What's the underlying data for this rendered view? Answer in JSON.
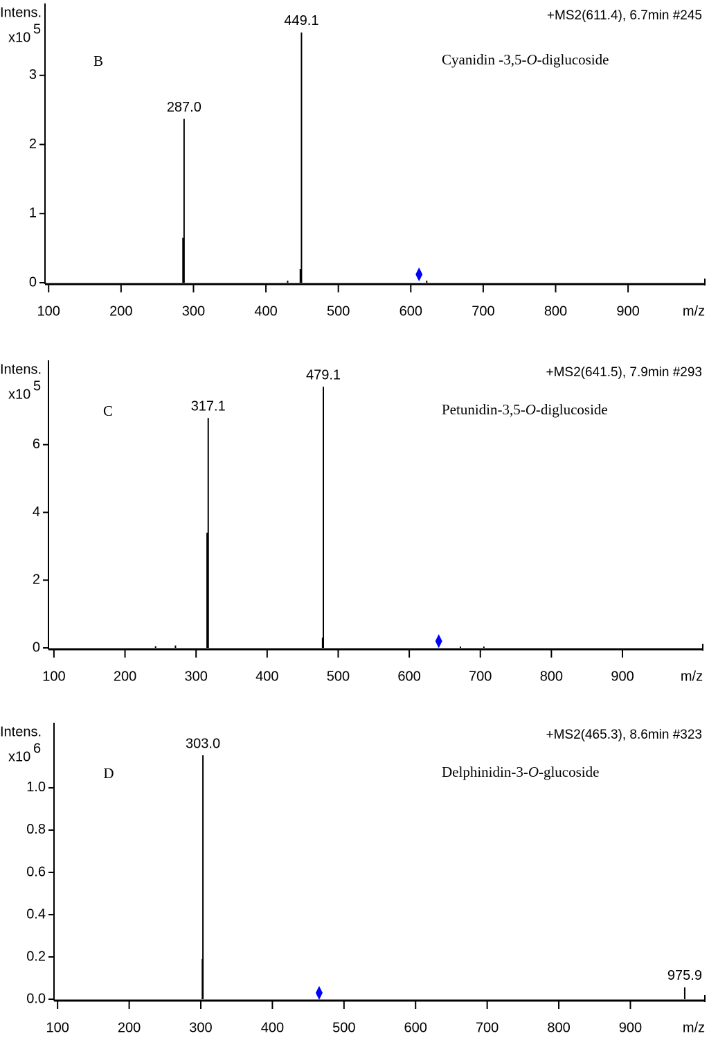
{
  "chart_data": [
    {
      "type": "bar",
      "ylabel": "Intens.",
      "yscale_label": "x10",
      "yscale_exponent": "5",
      "header": "+MS2(611.4), 6.7min #245",
      "panel": "B",
      "compound": [
        "Cyanidin -3,5-",
        "O",
        "-diglucoside"
      ],
      "xlabel": "m/z",
      "xlim": [
        95,
        1006
      ],
      "xticks": [
        100,
        200,
        300,
        400,
        500,
        600,
        700,
        800,
        900
      ],
      "ylim": [
        0,
        4.04
      ],
      "yticks": [
        0,
        1,
        2,
        3
      ],
      "color": "#000000",
      "x": [
        287.0,
        449.1,
        285.5,
        447.5,
        430.0,
        622.0
      ],
      "values": [
        2.37,
        3.62,
        0.65,
        0.2,
        0.03,
        0.03
      ],
      "peak_labels": [
        "287.0",
        "449.1",
        null,
        null,
        null,
        null
      ],
      "precursor": {
        "x": 611.4,
        "y": 0.12,
        "color": "#0000ff"
      }
    },
    {
      "type": "bar",
      "ylabel": "Intens.",
      "yscale_label": "x10",
      "yscale_exponent": "5",
      "header": "+MS2(641.5), 7.9min #293",
      "panel": "C",
      "compound": [
        "Petunidin-3,5-",
        "O",
        "-diglucoside"
      ],
      "xlabel": "m/z",
      "xlim": [
        92.3,
        1013
      ],
      "xticks": [
        100,
        200,
        300,
        400,
        500,
        600,
        700,
        800,
        900
      ],
      "ylim": [
        0,
        8.49
      ],
      "yticks": [
        0,
        2,
        4,
        6
      ],
      "color": "#000000",
      "x": [
        317.1,
        479.1,
        315.5,
        478.0,
        243.0,
        271.0,
        672.0,
        705.0
      ],
      "values": [
        6.79,
        7.71,
        3.4,
        0.3,
        0.05,
        0.07,
        0.04,
        0.04
      ],
      "peak_labels": [
        "317.1",
        "479.1",
        null,
        null,
        null,
        null,
        null,
        null
      ],
      "precursor": {
        "x": 641.5,
        "y": 0.2,
        "color": "#0000ff"
      }
    },
    {
      "type": "bar",
      "ylabel": "Intens.",
      "yscale_label": "x10",
      "yscale_exponent": "6",
      "header": "+MS2(465.3), 8.6min #323",
      "panel": "D",
      "compound": [
        "Delphinidin-3-",
        "O",
        "-glucoside"
      ],
      "xlabel": "m/z",
      "xlim": [
        95,
        1004
      ],
      "xticks": [
        100,
        200,
        300,
        400,
        500,
        600,
        700,
        800,
        900
      ],
      "ylim": [
        0,
        1.308
      ],
      "yticks": [
        {
          "value": 0,
          "label": "0.0"
        },
        0.2,
        0.4,
        0.6,
        0.8,
        {
          "value": 1,
          "label": "1.0"
        }
      ],
      "color": "#000000",
      "x": [
        303.0,
        302.2,
        975.9
      ],
      "values": [
        1.154,
        0.19,
        0.056
      ],
      "peak_labels": [
        "303.0",
        null,
        "975.9"
      ],
      "precursor": {
        "x": 465.3,
        "y": 0.03,
        "color": "#0000ff"
      }
    }
  ]
}
